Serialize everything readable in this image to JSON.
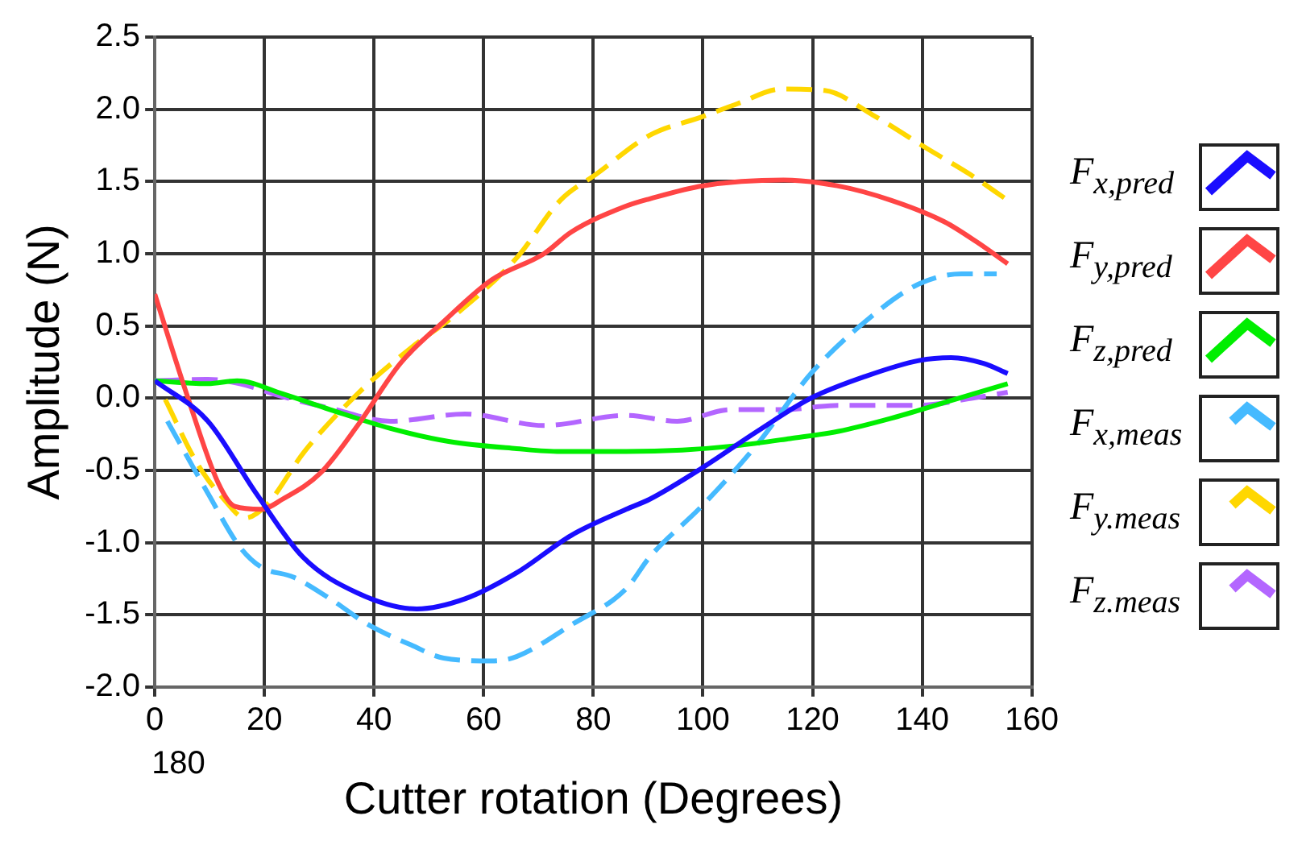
{
  "chart_data": {
    "type": "line",
    "xlabel": "Cutter rotation (Degrees)",
    "ylabel": "Amplitude (N)",
    "xlim": [
      0,
      160
    ],
    "annotations": [
      "180"
    ],
    "xticks": [
      0,
      20,
      40,
      60,
      80,
      100,
      120,
      140,
      160
    ],
    "ylim": [
      -2.0,
      2.5
    ],
    "yticks": [
      {
        "value": -2,
        "label": "-2.0"
      },
      {
        "value": -1.5,
        "label": "-1.5"
      },
      {
        "value": -1,
        "label": "-1.0"
      },
      {
        "value": -0.5,
        "label": "-0.5"
      },
      {
        "value": 0,
        "label": "0.0"
      },
      {
        "value": 0.5,
        "label": "0.5"
      },
      {
        "value": 1,
        "label": "1.0"
      },
      {
        "value": 1.5,
        "label": "1.5"
      },
      {
        "value": 2,
        "label": "2.0"
      },
      {
        "value": 2.5,
        "label": "2.5"
      }
    ],
    "grid": true,
    "legend": "right",
    "marker": "none",
    "series": [
      {
        "name": "F$_{x,pred}$",
        "color": "#1a0dff",
        "line_style": "solid",
        "x": [
          0,
          9.7,
          18.5,
          27,
          37,
          47.8,
          56.6,
          66,
          76,
          86,
          90.3,
          100,
          109.9,
          119.7,
          129.6,
          139.4,
          145.3,
          151.2,
          155.6
        ],
        "values": [
          0.12,
          -0.16,
          -0.66,
          -1.1,
          -1.35,
          -1.46,
          -1.39,
          -1.21,
          -0.95,
          -0.77,
          -0.7,
          -0.48,
          -0.23,
          0.0,
          0.15,
          0.26,
          0.28,
          0.24,
          0.17
        ]
      },
      {
        "name": "F$_{y,pred}$",
        "color": "#ff4545",
        "line_style": "solid",
        "x": [
          0,
          5.8,
          11.6,
          14.6,
          19.4,
          23.3,
          30.2,
          37,
          44.8,
          52.7,
          61.5,
          71,
          76,
          86,
          90.3,
          100,
          114.7,
          124.5,
          134.3,
          144.1,
          150,
          155.6
        ],
        "values": [
          0.72,
          0.03,
          -0.59,
          -0.75,
          -0.77,
          -0.7,
          -0.52,
          -0.19,
          0.24,
          0.53,
          0.82,
          1.0,
          1.15,
          1.33,
          1.38,
          1.47,
          1.51,
          1.47,
          1.37,
          1.22,
          1.08,
          0.93
        ]
      },
      {
        "name": "F$_{z,pred}$",
        "color": "#00ee00",
        "line_style": "solid",
        "x": [
          0,
          9.7,
          15,
          23.3,
          32,
          43,
          53.6,
          66,
          74,
          86,
          96.2,
          106,
          115.9,
          124.7,
          134.3,
          144.1,
          155.6
        ],
        "values": [
          0.12,
          0.1,
          0.12,
          0.03,
          -0.08,
          -0.21,
          -0.3,
          -0.35,
          -0.37,
          -0.37,
          -0.36,
          -0.33,
          -0.28,
          -0.23,
          -0.14,
          -0.03,
          0.1
        ]
      },
      {
        "name": "F$_{x,meas}$",
        "color": "#45baff",
        "line_style": "dashed",
        "x": [
          2.3,
          9.7,
          15.5,
          19.4,
          25.3,
          32,
          39,
          46.8,
          52.7,
          61.5,
          66,
          76,
          86,
          90.3,
          100,
          109.9,
          119.7,
          129.6,
          139.4,
          147.2,
          153.6
        ],
        "values": [
          -0.16,
          -0.66,
          -1.03,
          -1.17,
          -1.24,
          -1.39,
          -1.57,
          -1.71,
          -1.8,
          -1.82,
          -1.79,
          -1.57,
          -1.32,
          -1.1,
          -0.74,
          -0.32,
          0.17,
          0.53,
          0.79,
          0.86,
          0.86
        ]
      },
      {
        "name": "F$_{y.meas}$",
        "color": "#ffd700",
        "line_style": "dashed",
        "x": [
          1.9,
          7.7,
          12.6,
          16.5,
          20.4,
          27.3,
          37,
          46.8,
          54.6,
          66,
          74,
          80.5,
          90.3,
          100,
          106.4,
          114.3,
          122.2,
          131,
          140.8,
          148.7,
          155.6
        ],
        "values": [
          -0.01,
          -0.45,
          -0.7,
          -0.83,
          -0.74,
          -0.37,
          0.03,
          0.35,
          0.57,
          0.97,
          1.37,
          1.55,
          1.82,
          1.95,
          2.04,
          2.14,
          2.13,
          1.96,
          1.73,
          1.55,
          1.37
        ]
      },
      {
        "name": "F$_{z.meas}$",
        "color": "#b366ff",
        "line_style": "dashed",
        "x": [
          0,
          9.7,
          15.5,
          23.3,
          32,
          43,
          56.6,
          71,
          86,
          95.3,
          105,
          114.7,
          124.7,
          139.4,
          149.2,
          155.6
        ],
        "values": [
          0.12,
          0.13,
          0.1,
          0.01,
          -0.07,
          -0.16,
          -0.11,
          -0.19,
          -0.12,
          -0.16,
          -0.08,
          -0.08,
          -0.05,
          -0.05,
          0.0,
          0.04
        ]
      }
    ]
  }
}
